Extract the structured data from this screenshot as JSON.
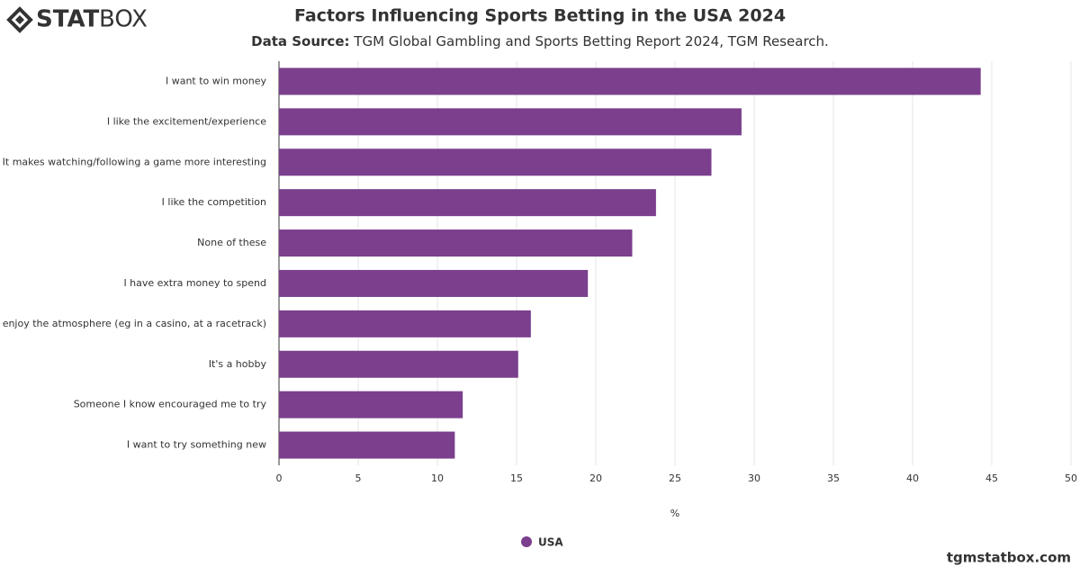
{
  "logo": {
    "bold": "STAT",
    "light": "BOX"
  },
  "footer": "tgmstatbox.com",
  "chart_data": {
    "type": "bar",
    "orientation": "horizontal",
    "title": "Factors Influencing Sports Betting in the USA 2024",
    "subtitle_label": "Data Source:",
    "subtitle": "TGM Global Gambling and Sports Betting Report 2024, TGM Research.",
    "x_label": "%",
    "categories": [
      "I want to win money",
      "I like the excitement/experience",
      "It makes watching/following a game more interesting",
      "I like the competition",
      "None of these",
      "I have extra money to spend",
      "I enjoy the atmosphere (eg in a casino, at a racetrack)",
      "It's a hobby",
      "Someone I know encouraged me to try",
      "I want to try something new"
    ],
    "series": [
      {
        "name": "USA",
        "color": "#7b3f8e",
        "values": [
          44.3,
          29.2,
          27.3,
          23.8,
          22.3,
          19.5,
          15.9,
          15.1,
          11.6,
          11.1
        ]
      }
    ],
    "xlim": [
      0,
      50
    ],
    "xticks": [
      0,
      5,
      10,
      15,
      20,
      25,
      30,
      35,
      40,
      45,
      50
    ],
    "grid": true
  }
}
